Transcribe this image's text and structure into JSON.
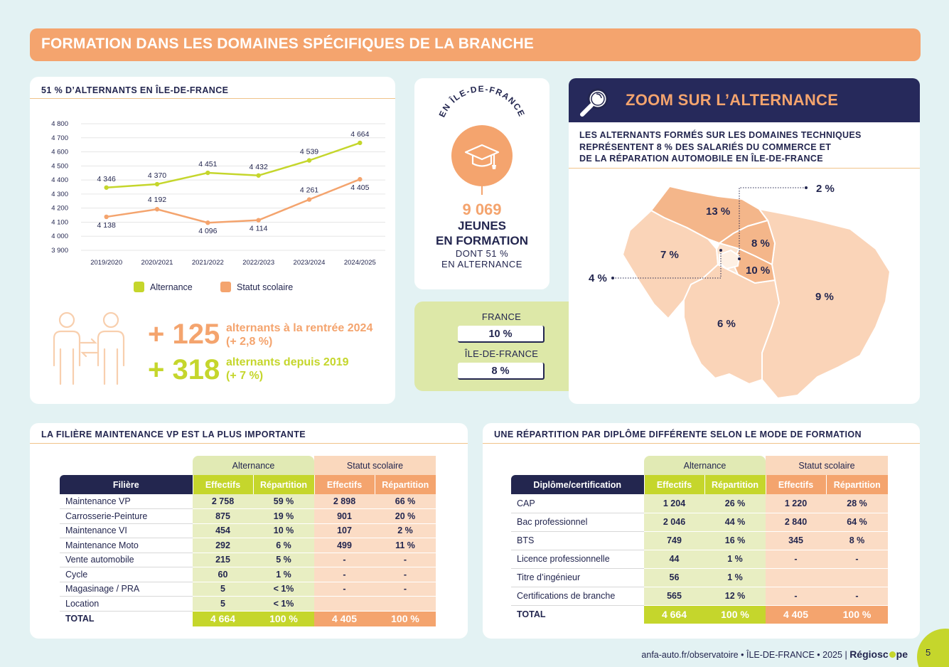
{
  "banner": {
    "title": "FORMATION DANS LES DOMAINES SPÉCIFIQUES DE LA BRANCHE"
  },
  "chart_card": {
    "title": "51 % D’ALTERNANTS EN ÎLE-DE-FRANCE",
    "stats": [
      {
        "value": "+ 125",
        "label1": "alternants à la rentrée 2024",
        "label2": "(+ 2,8 %)",
        "color": "#f4a46e"
      },
      {
        "value": "+ 318",
        "label1": "alternants depuis 2019",
        "label2": "(+ 7 %)",
        "color": "#c5d62c"
      }
    ]
  },
  "chart_data": {
    "type": "line",
    "categories": [
      "2019/2020",
      "2020/2021",
      "2021/2022",
      "2022/2023",
      "2023/2024",
      "2024/2025"
    ],
    "series": [
      {
        "name": "Alternance",
        "values": [
          4346,
          4370,
          4451,
          4432,
          4539,
          4664
        ],
        "labels": [
          "4 346",
          "4 370",
          "4 451",
          "4 432",
          "4 539",
          "4 664"
        ],
        "color": "#c5d62c"
      },
      {
        "name": "Statut scolaire",
        "values": [
          4138,
          4192,
          4096,
          4114,
          4261,
          4405
        ],
        "labels": [
          "4 138",
          "4 192",
          "4 096",
          "4 114",
          "4 261",
          "4 405"
        ],
        "color": "#f4a46e"
      }
    ],
    "yticks": [
      "4 800",
      "4 700",
      "4 600",
      "4 500",
      "4 400",
      "4 300",
      "4 200",
      "4 100",
      "4 000",
      "3 900"
    ],
    "ylim": [
      3900,
      4800
    ],
    "grid": true,
    "legend": "bottom"
  },
  "center": {
    "arc_text": "EN ÎLE-DE-FRANCE",
    "number": "9 069",
    "line1": "JEUNES",
    "line2": "EN FORMATION",
    "line3": "DONT 51 %",
    "line4": "EN ALTERNANCE"
  },
  "compare": {
    "france_label": "FRANCE",
    "france_value": "10 %",
    "idf_label": "ÎLE-DE-FRANCE",
    "idf_value": "8 %"
  },
  "zoom": {
    "title": "ZOOM SUR L’ALTERNANCE",
    "text1": "LES ALTERNANTS FORMÉS SUR LES DOMAINES TECHNIQUES",
    "text2": "REPRÉSENTENT 8 % DES SALARIÉS DU COMMERCE ET",
    "text3": "DE LA RÉPARATION AUTOMOBILE EN ÎLE-DE-FRANCE",
    "map_labels": [
      "2 %",
      "13 %",
      "8 %",
      "7 %",
      "10 %",
      "4 %",
      "9 %",
      "6 %"
    ]
  },
  "table1": {
    "title": "LA FILIÈRE MAINTENANCE VP EST LA PLUS IMPORTANTE",
    "group_a": "Alternance",
    "group_s": "Statut scolaire",
    "head": [
      "Filière",
      "Effectifs",
      "Répartition",
      "Effectifs",
      "Répartition"
    ],
    "rows": [
      [
        "Maintenance VP",
        "2 758",
        "59 %",
        "2 898",
        "66 %"
      ],
      [
        "Carrosserie-Peinture",
        "875",
        "19 %",
        "901",
        "20 %"
      ],
      [
        "Maintenance VI",
        "454",
        "10 %",
        "107",
        "2 %"
      ],
      [
        "Maintenance Moto",
        "292",
        "6 %",
        "499",
        "11 %"
      ],
      [
        "Vente automobile",
        "215",
        "5 %",
        "-",
        "-"
      ],
      [
        "Cycle",
        "60",
        "1 %",
        "-",
        "-"
      ],
      [
        "Magasinage / PRA",
        "5",
        "< 1%",
        "-",
        "-"
      ],
      [
        "Location",
        "5",
        "< 1%",
        "",
        ""
      ]
    ],
    "total": [
      "TOTAL",
      "4 664",
      "100 %",
      "4 405",
      "100 %"
    ]
  },
  "table2": {
    "title": "UNE RÉPARTITION PAR DIPLÔME DIFFÉRENTE SELON LE MODE DE FORMATION",
    "group_a": "Alternance",
    "group_s": "Statut scolaire",
    "head": [
      "Diplôme/certification",
      "Effectifs",
      "Répartition",
      "Effectifs",
      "Répartition"
    ],
    "rows": [
      [
        "CAP",
        "1 204",
        "26 %",
        "1 220",
        "28 %"
      ],
      [
        "Bac professionnel",
        "2 046",
        "44 %",
        "2 840",
        "64 %"
      ],
      [
        "BTS",
        "749",
        "16 %",
        "345",
        "8 %"
      ],
      [
        "Licence professionnelle",
        "44",
        "1 %",
        "-",
        "-"
      ],
      [
        "Titre d’ingénieur",
        "56",
        "1 %",
        "",
        ""
      ],
      [
        "Certifications de branche",
        "565",
        "12 %",
        "-",
        "-"
      ]
    ],
    "total": [
      "TOTAL",
      "4 664",
      "100 %",
      "4 405",
      "100 %"
    ]
  },
  "footer": {
    "site": "anfa-auto.fr/observatoire",
    "region": "ÎLE-DE-FRANCE",
    "year": "2025",
    "brand_a": "Régiosc",
    "brand_b": "pe",
    "page": "5"
  }
}
